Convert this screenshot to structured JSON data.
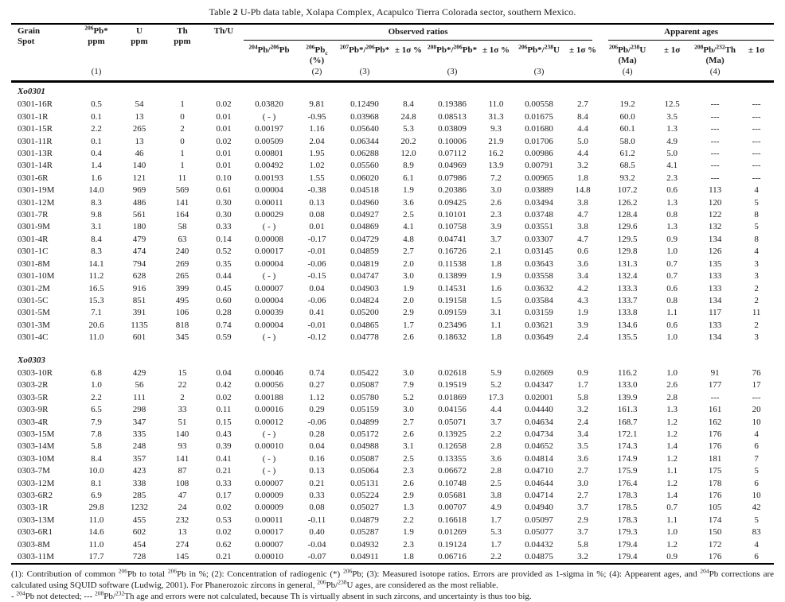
{
  "title": {
    "prefix": "Table ",
    "number": "2",
    "rest": "  U-Pb data table, Xolapa Complex, Acapulco Tierra Colorada sector, southern Mexico."
  },
  "table": {
    "left_headers": [
      "Grain\nSpot",
      "^206Pb*\nppm",
      "U\nppm",
      "Th\nppm",
      "Th/U"
    ],
    "groups": [
      "Observed ratios",
      "Apparent ages"
    ],
    "sub_headers": [
      "^204Pb/^206Pb",
      "^206Pb~c\n(%)",
      "^207Pb*/^206Pb*",
      "± 1σ %",
      "^208Pb*/^206Pb*",
      "± 1σ %",
      "^206Pb*/^238U",
      "± 1σ %",
      "^206Pb/^238U\n(Ma)",
      "± 1σ",
      "^208Pb/^232Th\n(Ma)",
      "± 1σ"
    ],
    "marker_row": [
      "",
      "(1)",
      "",
      "",
      "",
      "",
      "(2)",
      "(3)",
      "",
      "(3)",
      "",
      "(3)",
      "",
      "(4)",
      "",
      "(4)",
      ""
    ],
    "sections": [
      {
        "name": "Xo0301",
        "rows": [
          [
            "0301-16R",
            "0.5",
            "54",
            "1",
            "0.02",
            "0.03820",
            "9.81",
            "0.12490",
            "8.4",
            "0.19386",
            "11.0",
            "0.00558",
            "2.7",
            "19.2",
            "12.5",
            "---",
            "---"
          ],
          [
            "0301-1R",
            "0.1",
            "13",
            "0",
            "0.01",
            "( - )",
            "-0.95",
            "0.03968",
            "24.8",
            "0.08513",
            "31.3",
            "0.01675",
            "8.4",
            "60.0",
            "3.5",
            "---",
            "---"
          ],
          [
            "0301-15R",
            "2.2",
            "265",
            "2",
            "0.01",
            "0.00197",
            "1.16",
            "0.05640",
            "5.3",
            "0.03809",
            "9.3",
            "0.01680",
            "4.4",
            "60.1",
            "1.3",
            "---",
            "---"
          ],
          [
            "0301-11R",
            "0.1",
            "13",
            "0",
            "0.02",
            "0.00509",
            "2.04",
            "0.06344",
            "20.2",
            "0.10006",
            "21.9",
            "0.01706",
            "5.0",
            "58.0",
            "4.9",
            "---",
            "---"
          ],
          [
            "0301-13R",
            "0.4",
            "46",
            "1",
            "0.01",
            "0.00801",
            "1.95",
            "0.06288",
            "12.0",
            "0.07112",
            "16.2",
            "0.00986",
            "4.4",
            "61.2",
            "5.0",
            "---",
            "---"
          ],
          [
            "0301-14R",
            "1.4",
            "140",
            "1",
            "0.01",
            "0.00492",
            "1.02",
            "0.05560",
            "8.9",
            "0.04969",
            "13.9",
            "0.00791",
            "3.2",
            "68.5",
            "4.1",
            "---",
            "---"
          ],
          [
            "0301-6R",
            "1.6",
            "121",
            "11",
            "0.10",
            "0.00193",
            "1.55",
            "0.06020",
            "6.1",
            "0.07986",
            "7.2",
            "0.00965",
            "1.8",
            "93.2",
            "2.3",
            "---",
            "---"
          ],
          [
            "0301-19M",
            "14.0",
            "969",
            "569",
            "0.61",
            "0.00004",
            "-0.38",
            "0.04518",
            "1.9",
            "0.20386",
            "3.0",
            "0.03889",
            "14.8",
            "107.2",
            "0.6",
            "113",
            "4"
          ],
          [
            "0301-12M",
            "8.3",
            "486",
            "141",
            "0.30",
            "0.00011",
            "0.13",
            "0.04960",
            "3.6",
            "0.09425",
            "2.6",
            "0.03494",
            "3.8",
            "126.2",
            "1.3",
            "120",
            "5"
          ],
          [
            "0301-7R",
            "9.8",
            "561",
            "164",
            "0.30",
            "0.00029",
            "0.08",
            "0.04927",
            "2.5",
            "0.10101",
            "2.3",
            "0.03748",
            "4.7",
            "128.4",
            "0.8",
            "122",
            "8"
          ],
          [
            "0301-9M",
            "3.1",
            "180",
            "58",
            "0.33",
            "( - )",
            "0.01",
            "0.04869",
            "4.1",
            "0.10758",
            "3.9",
            "0.03551",
            "3.8",
            "129.6",
            "1.3",
            "132",
            "5"
          ],
          [
            "0301-4R",
            "8.4",
            "479",
            "63",
            "0.14",
            "0.00008",
            "-0.17",
            "0.04729",
            "4.8",
            "0.04741",
            "3.7",
            "0.03307",
            "4.7",
            "129.5",
            "0.9",
            "134",
            "8"
          ],
          [
            "0301-1C",
            "8.3",
            "474",
            "240",
            "0.52",
            "0.00017",
            "-0.01",
            "0.04859",
            "2.7",
            "0.16726",
            "2.1",
            "0.03145",
            "0.6",
            "129.8",
            "1.0",
            "126",
            "4"
          ],
          [
            "0301-8M",
            "14.1",
            "794",
            "269",
            "0.35",
            "0.00004",
            "-0.06",
            "0.04819",
            "2.0",
            "0.11538",
            "1.8",
            "0.03643",
            "3.6",
            "131.3",
            "0.7",
            "135",
            "3"
          ],
          [
            "0301-10M",
            "11.2",
            "628",
            "265",
            "0.44",
            "( - )",
            "-0.15",
            "0.04747",
            "3.0",
            "0.13899",
            "1.9",
            "0.03558",
            "3.4",
            "132.4",
            "0.7",
            "133",
            "3"
          ],
          [
            "0301-2M",
            "16.5",
            "916",
            "399",
            "0.45",
            "0.00007",
            "0.04",
            "0.04903",
            "1.9",
            "0.14531",
            "1.6",
            "0.03632",
            "4.2",
            "133.3",
            "0.6",
            "133",
            "2"
          ],
          [
            "0301-5C",
            "15.3",
            "851",
            "495",
            "0.60",
            "0.00004",
            "-0.06",
            "0.04824",
            "2.0",
            "0.19158",
            "1.5",
            "0.03584",
            "4.3",
            "133.7",
            "0.8",
            "134",
            "2"
          ],
          [
            "0301-5M",
            "7.1",
            "391",
            "106",
            "0.28",
            "0.00039",
            "0.41",
            "0.05200",
            "2.9",
            "0.09159",
            "3.1",
            "0.03159",
            "1.9",
            "133.8",
            "1.1",
            "117",
            "11"
          ],
          [
            "0301-3M",
            "20.6",
            "1135",
            "818",
            "0.74",
            "0.00004",
            "-0.01",
            "0.04865",
            "1.7",
            "0.23496",
            "1.1",
            "0.03621",
            "3.9",
            "134.6",
            "0.6",
            "133",
            "2"
          ],
          [
            "0301-4C",
            "11.0",
            "601",
            "345",
            "0.59",
            "( - )",
            "-0.12",
            "0.04778",
            "2.6",
            "0.18632",
            "1.8",
            "0.03649",
            "2.4",
            "135.5",
            "1.0",
            "134",
            "3"
          ]
        ]
      },
      {
        "name": "Xo0303",
        "rows": [
          [
            "0303-10R",
            "6.8",
            "429",
            "15",
            "0.04",
            "0.00046",
            "0.74",
            "0.05422",
            "3.0",
            "0.02618",
            "5.9",
            "0.02669",
            "0.9",
            "116.2",
            "1.0",
            "91",
            "76"
          ],
          [
            "0303-2R",
            "1.0",
            "56",
            "22",
            "0.42",
            "0.00056",
            "0.27",
            "0.05087",
            "7.9",
            "0.19519",
            "5.2",
            "0.04347",
            "1.7",
            "133.0",
            "2.6",
            "177",
            "17"
          ],
          [
            "0303-5R",
            "2.2",
            "111",
            "2",
            "0.02",
            "0.00188",
            "1.12",
            "0.05780",
            "5.2",
            "0.01869",
            "17.3",
            "0.02001",
            "5.8",
            "139.9",
            "2.8",
            "---",
            "---"
          ],
          [
            "0303-9R",
            "6.5",
            "298",
            "33",
            "0.11",
            "0.00016",
            "0.29",
            "0.05159",
            "3.0",
            "0.04156",
            "4.4",
            "0.04440",
            "3.2",
            "161.3",
            "1.3",
            "161",
            "20"
          ],
          [
            "0303-4R",
            "7.9",
            "347",
            "51",
            "0.15",
            "0.00012",
            "-0.06",
            "0.04899",
            "2.7",
            "0.05071",
            "3.7",
            "0.04634",
            "2.4",
            "168.7",
            "1.2",
            "162",
            "10"
          ],
          [
            "0303-15M",
            "7.8",
            "335",
            "140",
            "0.43",
            "( - )",
            "0.28",
            "0.05172",
            "2.6",
            "0.13925",
            "2.2",
            "0.04734",
            "3.4",
            "172.1",
            "1.2",
            "176",
            "4"
          ],
          [
            "0303-14M",
            "5.8",
            "248",
            "93",
            "0.39",
            "0.00010",
            "0.04",
            "0.04988",
            "3.1",
            "0.12658",
            "2.8",
            "0.04652",
            "3.5",
            "174.3",
            "1.4",
            "176",
            "6"
          ],
          [
            "0303-10M",
            "8.4",
            "357",
            "141",
            "0.41",
            "( - )",
            "0.16",
            "0.05087",
            "2.5",
            "0.13355",
            "3.6",
            "0.04814",
            "3.6",
            "174.9",
            "1.2",
            "181",
            "7"
          ],
          [
            "0303-7M",
            "10.0",
            "423",
            "87",
            "0.21",
            "( - )",
            "0.13",
            "0.05064",
            "2.3",
            "0.06672",
            "2.8",
            "0.04710",
            "2.7",
            "175.9",
            "1.1",
            "175",
            "5"
          ],
          [
            "0303-12M",
            "8.1",
            "338",
            "108",
            "0.33",
            "0.00007",
            "0.21",
            "0.05131",
            "2.6",
            "0.10748",
            "2.5",
            "0.04644",
            "3.0",
            "176.4",
            "1.2",
            "178",
            "6"
          ],
          [
            "0303-6R2",
            "6.9",
            "285",
            "47",
            "0.17",
            "0.00009",
            "0.33",
            "0.05224",
            "2.9",
            "0.05681",
            "3.8",
            "0.04714",
            "2.7",
            "178.3",
            "1.4",
            "176",
            "10"
          ],
          [
            "0303-1R",
            "29.8",
            "1232",
            "24",
            "0.02",
            "0.00009",
            "0.08",
            "0.05027",
            "1.3",
            "0.00707",
            "4.9",
            "0.04940",
            "3.7",
            "178.5",
            "0.7",
            "105",
            "42"
          ],
          [
            "0303-13M",
            "11.0",
            "455",
            "232",
            "0.53",
            "0.00011",
            "-0.11",
            "0.04879",
            "2.2",
            "0.16618",
            "1.7",
            "0.05097",
            "2.9",
            "178.3",
            "1.1",
            "174",
            "5"
          ],
          [
            "0303-6R1",
            "14.6",
            "602",
            "13",
            "0.02",
            "0.00017",
            "0.40",
            "0.05287",
            "1.9",
            "0.01269",
            "5.3",
            "0.05077",
            "3.7",
            "179.3",
            "1.0",
            "150",
            "83"
          ],
          [
            "0303-8M",
            "11.0",
            "454",
            "274",
            "0.62",
            "0.00007",
            "-0.04",
            "0.04932",
            "2.3",
            "0.19124",
            "1.7",
            "0.04432",
            "5.8",
            "179.4",
            "1.2",
            "172",
            "4"
          ],
          [
            "0303-11M",
            "17.7",
            "728",
            "145",
            "0.21",
            "0.00010",
            "-0.07",
            "0.04911",
            "1.8",
            "0.06716",
            "2.2",
            "0.04875",
            "3.2",
            "179.4",
            "0.9",
            "176",
            "6"
          ]
        ]
      }
    ]
  },
  "footnotes": [
    "(1): Contribution of common ^206Pb to total ^206Pb in %; (2): Concentration of radiogenic (*) ^206Pb; (3): Measured isotope ratios. Errors are provided as 1-sigma in %; (4): Appearent ages, and ^204Pb corrections are calculated using SQUID software (Ludwig, 2001). For Phanerozoic zircons in general, ^206Pb/^238U ages, are considered as the most reliable.",
    "- ^204Pb not detected; --- ^208Pb/^232Th age and errors were not calculated, because Th is virtually absent in such zircons, and uncertainty is thus too big."
  ]
}
